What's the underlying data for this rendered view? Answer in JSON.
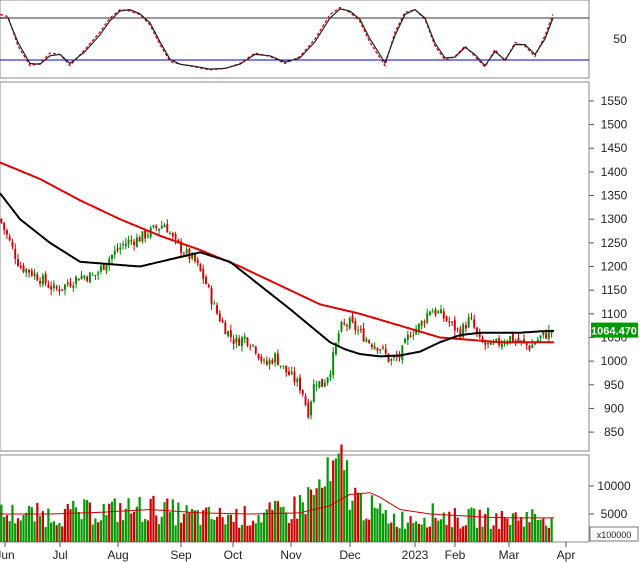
{
  "chart_data": [
    {
      "type": "line",
      "panel": "stochastic",
      "ylim": [
        0,
        100
      ],
      "y_ticks": [
        50
      ],
      "reference_lines": [
        80,
        20
      ],
      "colors": {
        "k": "#cc0000",
        "d": "#222222",
        "ref_upper": "#333333",
        "ref_lower": "#0000cc"
      },
      "x": [
        0,
        8,
        18,
        30,
        40,
        50,
        60,
        70,
        85,
        100,
        110,
        120,
        130,
        140,
        150,
        160,
        170,
        180,
        195,
        210,
        225,
        240,
        255,
        270,
        285,
        300,
        315,
        330,
        340,
        350,
        360,
        370,
        385,
        395,
        405,
        415,
        425,
        435,
        445,
        455,
        465,
        475,
        485,
        495,
        505,
        515,
        525,
        535,
        545,
        553
      ],
      "series": [
        {
          "key": "k",
          "values": [
            85,
            82,
            40,
            12,
            15,
            30,
            28,
            12,
            35,
            60,
            80,
            92,
            90,
            85,
            70,
            42,
            18,
            14,
            10,
            6,
            8,
            15,
            30,
            25,
            15,
            25,
            50,
            85,
            95,
            88,
            75,
            45,
            12,
            60,
            88,
            92,
            78,
            40,
            20,
            25,
            40,
            25,
            10,
            35,
            18,
            45,
            40,
            25,
            55,
            85
          ]
        },
        {
          "key": "d",
          "values": [
            80,
            80,
            45,
            15,
            14,
            26,
            28,
            15,
            32,
            56,
            76,
            90,
            92,
            86,
            73,
            46,
            21,
            14,
            11,
            7,
            8,
            14,
            28,
            26,
            17,
            23,
            46,
            80,
            93,
            90,
            78,
            50,
            16,
            55,
            85,
            92,
            80,
            44,
            23,
            24,
            38,
            28,
            12,
            32,
            20,
            42,
            42,
            28,
            50,
            80
          ]
        }
      ]
    },
    {
      "type": "candlestick",
      "panel": "price",
      "ylim": [
        810,
        1590
      ],
      "y_ticks": [
        850,
        900,
        950,
        1000,
        1050,
        1100,
        1150,
        1200,
        1250,
        1300,
        1350,
        1400,
        1450,
        1500,
        1550
      ],
      "last_value": "1064.470",
      "colors": {
        "up": "#008800",
        "down": "#cc0000",
        "ma_long": "#dd0000",
        "ma_short": "#000000",
        "last_label_bg": "#009900"
      },
      "close_anchors_x": [
        0,
        10,
        20,
        30,
        40,
        55,
        65,
        80,
        95,
        110,
        125,
        140,
        155,
        165,
        175,
        185,
        195,
        205,
        215,
        225,
        235,
        245,
        255,
        265,
        275,
        285,
        295,
        302,
        308,
        315,
        322,
        330,
        340,
        350,
        360,
        370,
        380,
        390,
        400,
        410,
        420,
        430,
        440,
        450,
        460,
        470,
        480,
        490,
        500,
        510,
        520,
        530,
        540,
        553
      ],
      "close_anchors_y": [
        1300,
        1250,
        1200,
        1190,
        1175,
        1150,
        1160,
        1180,
        1180,
        1220,
        1250,
        1260,
        1280,
        1290,
        1250,
        1230,
        1210,
        1170,
        1110,
        1070,
        1040,
        1050,
        1030,
        990,
        1010,
        980,
        960,
        940,
        890,
        960,
        950,
        980,
        1070,
        1080,
        1060,
        1040,
        1030,
        1000,
        1010,
        1060,
        1075,
        1110,
        1100,
        1080,
        1060,
        1090,
        1040,
        1030,
        1040,
        1050,
        1040,
        1030,
        1050,
        1064
      ],
      "ma_long": {
        "x": [
          0,
          40,
          80,
          120,
          160,
          200,
          240,
          280,
          320,
          360,
          400,
          440,
          470,
          500,
          530,
          555
        ],
        "y": [
          1420,
          1385,
          1340,
          1300,
          1265,
          1235,
          1200,
          1160,
          1120,
          1100,
          1075,
          1050,
          1045,
          1040,
          1040,
          1040
        ]
      },
      "ma_short": {
        "x": [
          0,
          20,
          50,
          80,
          110,
          140,
          170,
          200,
          230,
          260,
          290,
          310,
          330,
          345,
          360,
          380,
          400,
          420,
          440,
          460,
          480,
          500,
          520,
          540,
          555
        ],
        "y": [
          1355,
          1300,
          1250,
          1210,
          1205,
          1200,
          1215,
          1230,
          1210,
          1160,
          1110,
          1075,
          1040,
          1025,
          1015,
          1010,
          1012,
          1020,
          1040,
          1055,
          1060,
          1060,
          1060,
          1063,
          1064
        ]
      },
      "bars_count": 200
    },
    {
      "type": "bar",
      "panel": "volume",
      "ylim": [
        0,
        15000
      ],
      "y_ticks": [
        5000,
        10000
      ],
      "unit_label": "x100000",
      "colors": {
        "up": "#009900",
        "down": "#cc0000",
        "average": "#cc0000"
      },
      "volume_anchors_x": [
        0,
        50,
        100,
        150,
        200,
        250,
        290,
        310,
        330,
        345,
        350,
        360,
        380,
        400,
        420,
        440,
        460,
        480,
        500,
        520,
        540,
        555
      ],
      "volume_anchors_y": [
        5000,
        4800,
        5500,
        6000,
        4500,
        4500,
        5500,
        8000,
        11000,
        13500,
        9000,
        7000,
        5000,
        4000,
        4500,
        5000,
        4000,
        4500,
        4000,
        4500,
        4500,
        4500
      ],
      "average_anchors_x": [
        0,
        50,
        100,
        150,
        200,
        250,
        300,
        330,
        350,
        370,
        380,
        400,
        430,
        460,
        490,
        520,
        555
      ],
      "average_anchors_y": [
        5000,
        5000,
        5300,
        5800,
        5200,
        5000,
        5200,
        6500,
        8500,
        8800,
        8000,
        5800,
        5000,
        4700,
        4400,
        4300,
        4300
      ],
      "bars_count": 200
    }
  ],
  "x_axis": {
    "labels": [
      "Jun",
      "Jul",
      "Aug",
      "Sep",
      "Oct",
      "Nov",
      "Dec",
      "2023",
      "Feb",
      "Mar",
      "Apr"
    ],
    "positions": [
      5,
      60,
      118,
      181,
      233,
      291,
      350,
      415,
      455,
      509,
      566
    ]
  }
}
